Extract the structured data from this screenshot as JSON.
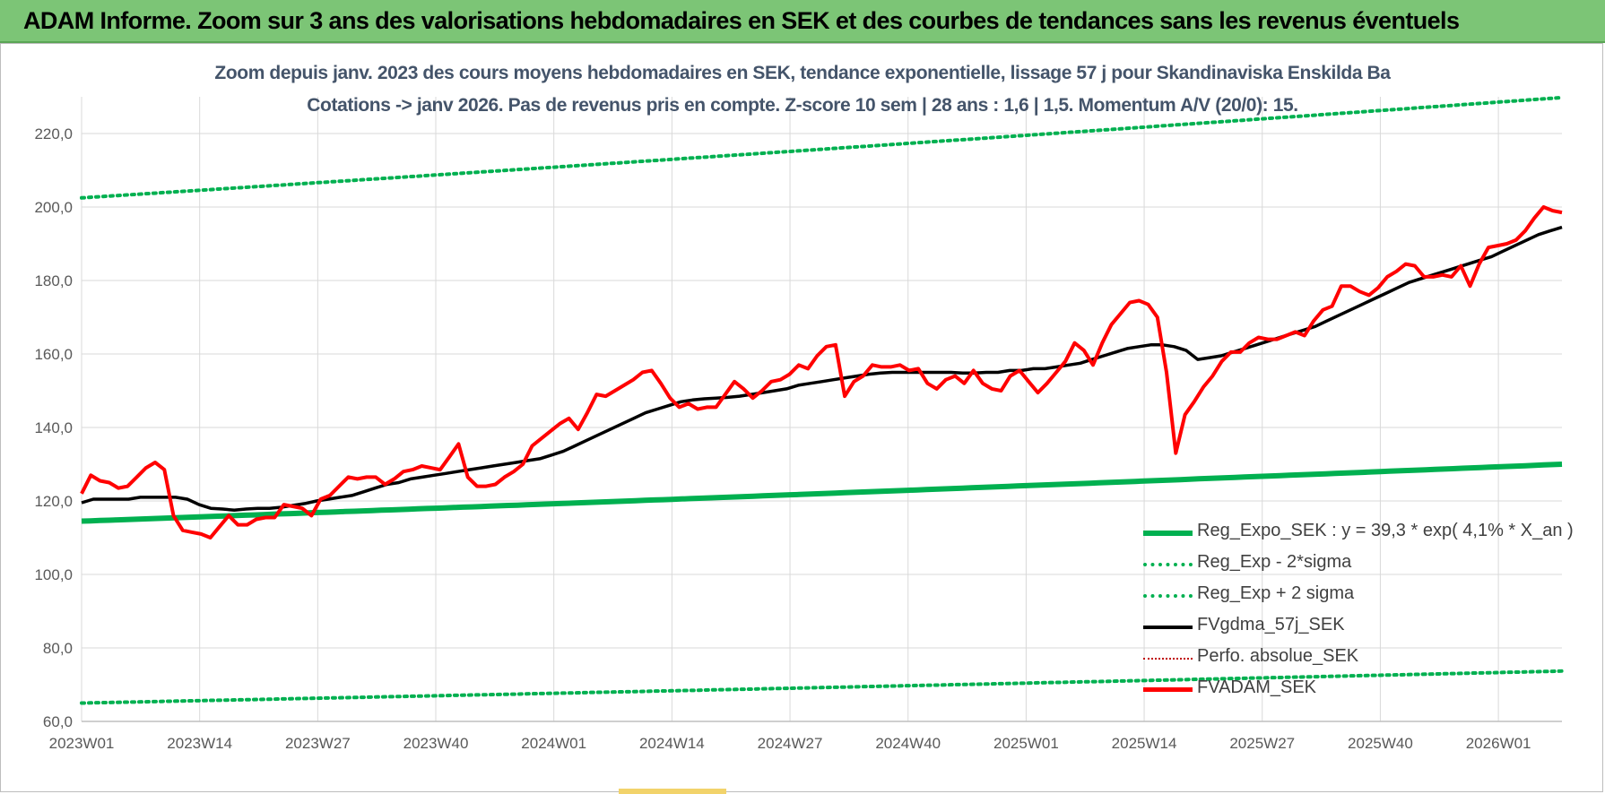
{
  "header": {
    "title": "ADAM Informe. Zoom sur 3 ans des valorisations hebdomadaires en SEK et des courbes de tendances sans les revenus éventuels"
  },
  "chart_data": {
    "type": "line",
    "title_line1": "Zoom depuis janv. 2023 des cours moyens hebdomadaires en SEK, tendance exponentielle, lissage 57 j pour Skandinaviska Enskilda Ba",
    "title_line2": "Cotations -> janv 2026. Pas de revenus pris en compte. Z-score 10 sem | 28 ans : 1,6 | 1,5. Momentum A/V (20/0): 15.",
    "ylim": [
      60,
      230
    ],
    "y_ticks": [
      "60,0",
      "80,0",
      "100,0",
      "120,0",
      "140,0",
      "160,0",
      "180,0",
      "200,0",
      "220,0"
    ],
    "x_ticks": [
      "2023W01",
      "2023W14",
      "2023W27",
      "2023W40",
      "2024W01",
      "2024W14",
      "2024W27",
      "2024W40",
      "2025W01",
      "2025W14",
      "2025W27",
      "2025W40",
      "2026W01"
    ],
    "grid": true,
    "legend_position": "bottom-right",
    "colors": {
      "reg": "#00b050",
      "fv": "#000000",
      "adam": "#ff0000",
      "perf": "#c00000"
    },
    "series": [
      {
        "key": "reg",
        "name": "Reg_Expo_SEK : y = 39,3 * exp( 4,1% * X_an )",
        "start": 114.5,
        "end": 130.0
      },
      {
        "key": "minus",
        "name": "Reg_Exp - 2*sigma",
        "start": 65.0,
        "end": 73.7
      },
      {
        "key": "plus",
        "name": "Reg_Exp + 2 sigma",
        "start": 202.5,
        "end": 229.8
      },
      {
        "key": "fv",
        "name": "FVgdma_57j_SEK",
        "values": [
          119.5,
          120.5,
          120.5,
          120.5,
          120.5,
          121,
          121,
          121,
          121,
          120.5,
          119,
          118,
          117.8,
          117.5,
          117.8,
          118,
          118,
          118.3,
          118.8,
          119.3,
          120,
          120.5,
          121,
          121.5,
          122.5,
          123.5,
          124.5,
          125,
          126,
          126.5,
          127,
          127.5,
          128,
          128.5,
          129,
          129.5,
          130,
          130.5,
          131,
          131.5,
          132.5,
          133.5,
          135,
          136.5,
          138,
          139.5,
          141,
          142.5,
          144,
          145,
          146,
          147,
          147.5,
          147.8,
          148,
          148.2,
          148.5,
          149,
          149.5,
          150,
          150.5,
          151.5,
          152,
          152.5,
          153,
          153.5,
          154,
          154.5,
          154.8,
          155,
          155,
          155,
          155,
          155,
          155,
          154.8,
          154.8,
          155,
          155,
          155.5,
          155.5,
          156,
          156,
          156.5,
          157,
          157.5,
          158.5,
          159.5,
          160.5,
          161.5,
          162,
          162.5,
          162.5,
          162,
          161,
          158.5,
          159,
          159.5,
          160.5,
          161.5,
          162.5,
          163.5,
          164.5,
          165.5,
          166.5,
          167.5,
          169,
          170.5,
          172,
          173.5,
          175,
          176.5,
          178,
          179.5,
          180.5,
          181.5,
          182.5,
          183.5,
          184.5,
          185.5,
          186.5,
          188,
          189.5,
          191,
          192.5,
          193.5,
          194.5
        ]
      },
      {
        "key": "perf",
        "name": "Perfo. absolue_SEK"
      },
      {
        "key": "adam",
        "name": "FVADAM_SEK",
        "values": [
          122,
          127,
          125.5,
          125,
          123.5,
          124,
          126.5,
          129,
          130.5,
          128.5,
          116,
          112,
          111.5,
          111,
          110,
          113,
          116,
          113.5,
          113.5,
          115,
          115.5,
          115.5,
          119,
          118.5,
          118,
          116,
          120.5,
          121.5,
          124,
          126.5,
          126,
          126.5,
          126.5,
          124.5,
          126,
          128,
          128.5,
          129.5,
          129,
          128.5,
          132,
          135.5,
          126.5,
          124,
          124,
          124.5,
          126.5,
          128,
          130,
          135,
          137,
          139,
          141,
          142.5,
          139.5,
          144,
          149,
          148.5,
          150,
          151.5,
          153,
          155,
          155.5,
          152,
          148,
          145.5,
          146.5,
          145,
          145.5,
          145.5,
          149,
          152.5,
          150.5,
          148,
          150,
          152.5,
          153,
          154.5,
          157,
          156,
          159.5,
          162,
          162.5,
          148.5,
          152.5,
          154,
          157,
          156.5,
          156.5,
          157,
          155.5,
          156,
          152,
          150.5,
          153,
          154,
          152,
          155.5,
          152,
          150.5,
          150,
          154,
          155.5,
          152.5,
          149.5,
          152,
          155,
          158,
          163,
          161,
          157,
          163,
          168,
          171,
          174,
          174.5,
          173.5,
          170,
          155,
          133,
          143.5,
          147,
          151,
          154,
          158,
          160.5,
          160.5,
          163,
          164.5,
          164,
          164,
          165,
          166,
          165,
          169,
          172,
          173,
          178.5,
          178.5,
          177,
          176,
          178,
          181,
          182.5,
          184.5,
          184,
          181,
          181,
          181.5,
          181,
          184,
          178.5,
          184.5,
          189,
          189.5,
          190,
          191,
          193.5,
          197,
          200,
          199,
          198.5
        ]
      }
    ]
  }
}
